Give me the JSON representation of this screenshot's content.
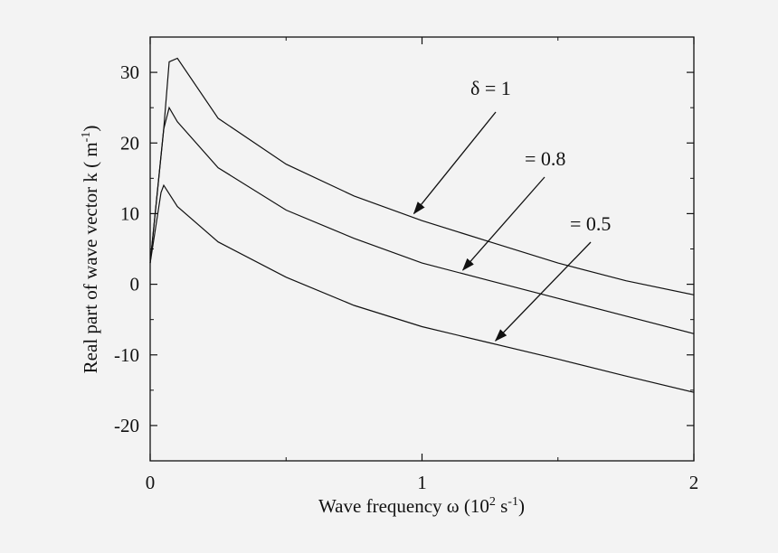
{
  "colors": {
    "background": "#f3f3f3",
    "ink": "#111111"
  },
  "chart_data": {
    "type": "line",
    "xlabel": {
      "main": "Wave frequency ω (10",
      "sup1": "2",
      "mid": " s",
      "sup2": "-1",
      "end": ")"
    },
    "ylabel": {
      "main": "Real part of wave vector k ( m",
      "sup": "-1",
      "end": ")"
    },
    "xlim": [
      0,
      2
    ],
    "ylim": [
      -25,
      35
    ],
    "x_ticks": [
      0,
      1,
      2
    ],
    "x_tick_labels": [
      "0",
      "1",
      "2"
    ],
    "y_ticks": [
      -20,
      -10,
      0,
      10,
      20,
      30
    ],
    "y_tick_labels": [
      "-20",
      "-10",
      "0",
      "10",
      "20",
      "30"
    ],
    "grid": false,
    "series": [
      {
        "name": "δ = 1",
        "x": [
          0,
          0.05,
          0.07,
          0.1,
          0.25,
          0.5,
          0.75,
          1.0,
          1.25,
          1.5,
          1.75,
          2.0
        ],
        "y": [
          3,
          22,
          31.5,
          32,
          23.5,
          17,
          12.5,
          9,
          6,
          3,
          0.5,
          -1.5
        ]
      },
      {
        "name": "= 0.8",
        "x": [
          0,
          0.05,
          0.07,
          0.1,
          0.25,
          0.5,
          0.75,
          1.0,
          1.25,
          1.5,
          1.75,
          2.0
        ],
        "y": [
          3,
          22,
          25,
          23,
          16.5,
          10.5,
          6.5,
          3,
          0.5,
          -2,
          -4.5,
          -7
        ]
      },
      {
        "name": "= 0.5",
        "x": [
          0,
          0.04,
          0.05,
          0.1,
          0.25,
          0.5,
          0.75,
          1.0,
          1.25,
          1.5,
          1.75,
          2.0
        ],
        "y": [
          3,
          13,
          14,
          11,
          6,
          1,
          -3,
          -6,
          -8.3,
          -10.6,
          -13,
          -15.3
        ]
      }
    ],
    "annotations": [
      {
        "label": "δ = 1",
        "target": [
          0.97,
          10
        ]
      },
      {
        "label": "= 0.8",
        "target": [
          1.15,
          2
        ]
      },
      {
        "label": "= 0.5",
        "target": [
          1.27,
          -8
        ]
      }
    ]
  }
}
